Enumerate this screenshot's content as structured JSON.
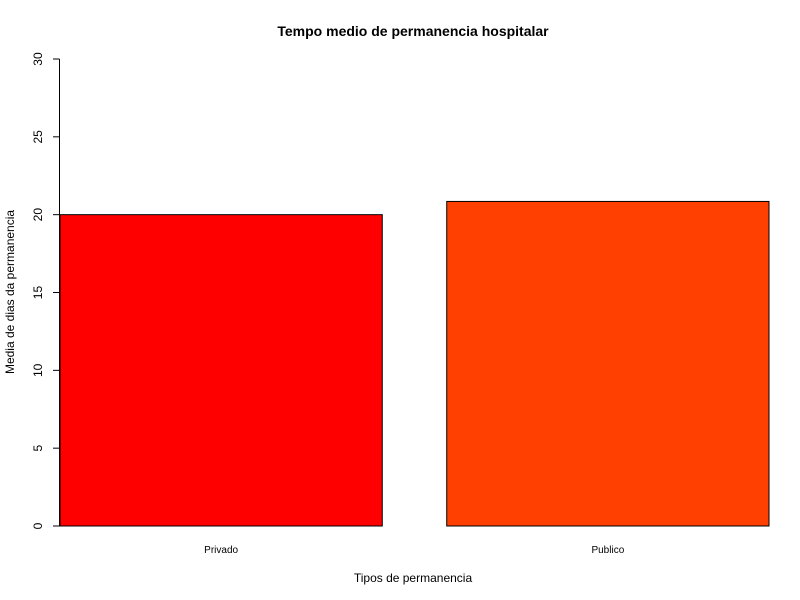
{
  "chart_data": {
    "type": "bar",
    "title": "Tempo medio de permanencia hospitalar",
    "xlabel": "Tipos de permanencia",
    "ylabel": "Media de dias da permanencia",
    "categories": [
      "Privado",
      "Publico"
    ],
    "values": [
      20.0,
      20.85
    ],
    "colors": [
      "#ff0000",
      "#ff4000"
    ],
    "ylim": [
      0,
      30
    ],
    "yticks": [
      0,
      5,
      10,
      15,
      20,
      25,
      30
    ],
    "grid": false,
    "legend": "none"
  }
}
